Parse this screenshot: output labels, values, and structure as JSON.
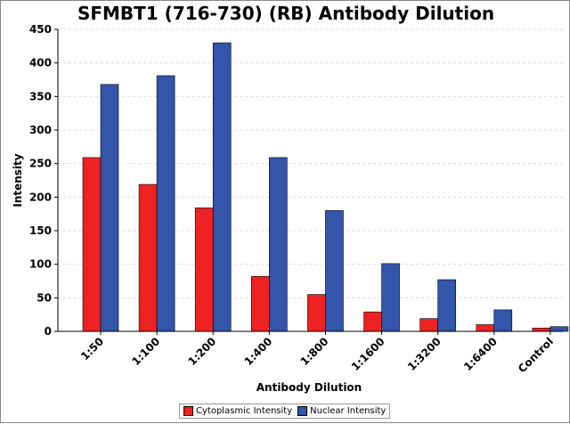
{
  "chart_data": {
    "type": "bar",
    "title": "SFMBT1 (716-730) (RB) Antibody Dilution",
    "xlabel": "Antibody Dilution",
    "ylabel": "Intensity",
    "categories": [
      "1:50",
      "1:100",
      "1:200",
      "1:400",
      "1:800",
      "1:1600",
      "1:3200",
      "1:6400",
      "Control"
    ],
    "series": [
      {
        "name": "Cytoplasmic Intensity",
        "color": "#ee2222",
        "values": [
          259,
          219,
          184,
          82,
          55,
          29,
          19,
          10,
          5
        ]
      },
      {
        "name": "Nuclear Intensity",
        "color": "#3355aa",
        "values": [
          368,
          381,
          430,
          259,
          180,
          101,
          77,
          32,
          7
        ]
      }
    ],
    "ylim": [
      0,
      450
    ],
    "yticks": [
      0,
      50,
      100,
      150,
      200,
      250,
      300,
      350,
      400,
      450
    ],
    "grid": true,
    "legend_position": "bottom"
  }
}
